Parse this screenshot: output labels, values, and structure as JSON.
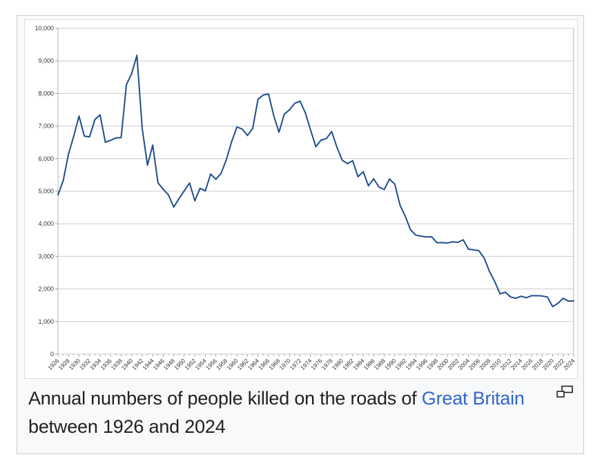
{
  "caption": {
    "prefix": "Annual numbers of people killed on the roads of ",
    "link_text": "Great Britain",
    "suffix": " between 1926 and 2024"
  },
  "icons": {
    "magnify": "magnify-clip-icon"
  },
  "colors": {
    "line": "#1f4e8c",
    "link": "#3366cc",
    "grid": "#cccccc"
  },
  "chart_data": {
    "type": "line",
    "title": "",
    "xlabel": "",
    "ylabel": "",
    "ylim": [
      0,
      10000
    ],
    "yticks": [
      "0",
      "1,000",
      "2,000",
      "3,000",
      "4,000",
      "5,000",
      "6,000",
      "7,000",
      "8,000",
      "9,000",
      "10,000"
    ],
    "xticks": [
      "1926",
      "1928",
      "1930",
      "1932",
      "1934",
      "1936",
      "1938",
      "1940",
      "1942",
      "1944",
      "1946",
      "1948",
      "1950",
      "1952",
      "1954",
      "1956",
      "1958",
      "1960",
      "1962",
      "1964",
      "1966",
      "1968",
      "1970",
      "1972",
      "1974",
      "1976",
      "1978",
      "1980",
      "1982",
      "1984",
      "1986",
      "1988",
      "1990",
      "1992",
      "1994",
      "1996",
      "1998",
      "2000",
      "2002",
      "2004",
      "2006",
      "2008",
      "2010",
      "2012",
      "2014",
      "2016",
      "2018",
      "2020",
      "2022",
      "2024"
    ],
    "grid": true,
    "legend": "none",
    "series": [
      {
        "x": [
          1926,
          1927,
          1928,
          1929,
          1930,
          1931,
          1932,
          1933,
          1934,
          1935,
          1936,
          1937,
          1938,
          1939,
          1940,
          1941,
          1942,
          1943,
          1944,
          1945,
          1946,
          1947,
          1948,
          1949,
          1950,
          1951,
          1952,
          1953,
          1954,
          1955,
          1956,
          1957,
          1958,
          1959,
          1960,
          1961,
          1962,
          1963,
          1964,
          1965,
          1966,
          1967,
          1968,
          1969,
          1970,
          1971,
          1972,
          1973,
          1974,
          1975,
          1976,
          1977,
          1978,
          1979,
          1980,
          1981,
          1982,
          1983,
          1984,
          1985,
          1986,
          1987,
          1988,
          1989,
          1990,
          1991,
          1992,
          1993,
          1994,
          1995,
          1996,
          1997,
          1998,
          1999,
          2000,
          2001,
          2002,
          2003,
          2004,
          2005,
          2006,
          2007,
          2008,
          2009,
          2010,
          2011,
          2012,
          2013,
          2014,
          2015,
          2016,
          2017,
          2018,
          2019,
          2020,
          2021,
          2022,
          2023,
          2024
        ],
        "values": [
          4886,
          5329,
          6138,
          6696,
          7305,
          6691,
          6667,
          7202,
          7343,
          6502,
          6561,
          6633,
          6648,
          8272,
          8609,
          9169,
          6926,
          5796,
          6416,
          5256,
          5062,
          4881,
          4513,
          4773,
          5012,
          5250,
          4706,
          5090,
          5010,
          5526,
          5367,
          5550,
          5970,
          6520,
          6970,
          6908,
          6709,
          6922,
          7820,
          7952,
          7985,
          7319,
          6810,
          7365,
          7499,
          7699,
          7763,
          7406,
          6876,
          6366,
          6570,
          6614,
          6831,
          6352,
          5953,
          5846,
          5934,
          5445,
          5599,
          5165,
          5382,
          5125,
          5052,
          5373,
          5217,
          4568,
          4229,
          3814,
          3650,
          3621,
          3598,
          3599,
          3421,
          3423,
          3409,
          3450,
          3431,
          3508,
          3221,
          3201,
          3172,
          2946,
          2538,
          2222,
          1850,
          1901,
          1754,
          1713,
          1775,
          1730,
          1792,
          1793,
          1784,
          1752,
          1460,
          1558,
          1711,
          1624,
          1633
        ]
      }
    ]
  }
}
